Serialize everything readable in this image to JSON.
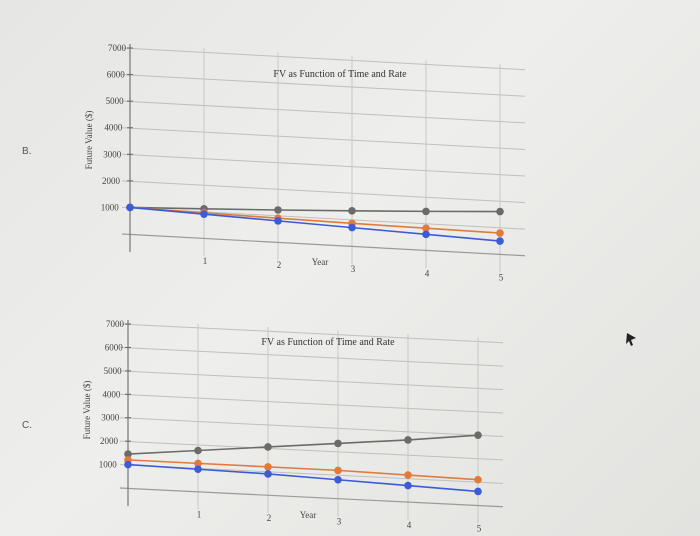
{
  "options": [
    {
      "letter": "B."
    },
    {
      "letter": "C."
    }
  ],
  "chart_data": [
    {
      "type": "line",
      "title": "FV as Function of Time and Rate",
      "xlabel": "Year",
      "ylabel": "Future Value ($)",
      "x": [
        0,
        1,
        2,
        3,
        4,
        5
      ],
      "x_tick_labels": [
        "1",
        "2",
        "3",
        "4",
        "5"
      ],
      "y_ticks": [
        1000,
        2000,
        3000,
        4000,
        5000,
        6000,
        7000
      ],
      "ylim": [
        0,
        7000
      ],
      "grid": true,
      "series": [
        {
          "color": "#6b6b6b",
          "values": [
            1000,
            1100,
            1210,
            1331,
            1464,
            1611
          ]
        },
        {
          "color": "#e07b39",
          "values": [
            1000,
            950,
            900,
            860,
            830,
            800
          ]
        },
        {
          "color": "#3b5bd9",
          "values": [
            1000,
            900,
            800,
            700,
            600,
            500
          ]
        }
      ]
    },
    {
      "type": "line",
      "title": "FV as Function of Time and Rate",
      "xlabel": "Year",
      "ylabel": "Future Value ($)",
      "x": [
        0,
        1,
        2,
        3,
        4,
        5
      ],
      "x_tick_labels": [
        "1",
        "2",
        "3",
        "4",
        "5"
      ],
      "y_ticks": [
        1000,
        2000,
        3000,
        4000,
        5000,
        6000,
        7000
      ],
      "ylim": [
        0,
        7000
      ],
      "grid": true,
      "series": [
        {
          "color": "#6b6b6b",
          "values": [
            1450,
            1750,
            2050,
            2350,
            2650,
            3000
          ]
        },
        {
          "color": "#e07b39",
          "values": [
            1200,
            1200,
            1200,
            1200,
            1150,
            1100
          ]
        },
        {
          "color": "#3b5bd9",
          "values": [
            1000,
            950,
            900,
            800,
            700,
            600
          ]
        }
      ]
    }
  ]
}
